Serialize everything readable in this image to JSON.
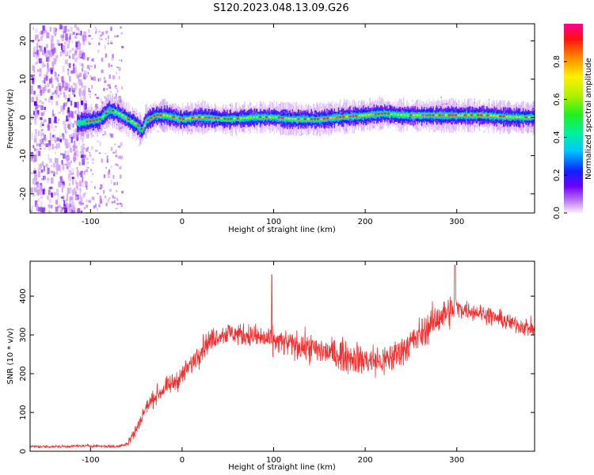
{
  "title": "S120.2023.048.13.09.G26",
  "chart_data": [
    {
      "type": "heatmap",
      "xlabel": "Height of straight line (km)",
      "ylabel": "Frequency (Hz)",
      "xlim": [
        -166,
        385
      ],
      "ylim": [
        -25,
        24.5
      ],
      "xticks": [
        -100,
        0,
        100,
        200,
        300
      ],
      "yticks": [
        -20,
        -10,
        0,
        10,
        20
      ],
      "colorbar": {
        "label": "Normalized spectral amplitude",
        "range": [
          0,
          1
        ],
        "ticks": [
          0.0,
          0.2,
          0.4,
          0.6,
          0.8
        ]
      },
      "ridge_center": {
        "x": [
          -115,
          -100,
          -90,
          -80,
          -70,
          -60,
          -50,
          -44,
          -40,
          -30,
          -20,
          -10,
          0,
          20,
          50,
          80,
          100,
          120,
          150,
          170,
          200,
          220,
          240,
          260,
          280,
          300,
          330,
          360,
          385
        ],
        "y": [
          -1.5,
          -1.0,
          -0.5,
          2.0,
          1.0,
          -0.5,
          -2.0,
          -3.5,
          -1.0,
          0.5,
          0.5,
          0.0,
          -0.5,
          0.0,
          -0.5,
          0.0,
          0.0,
          -0.5,
          -0.5,
          0.0,
          0.5,
          1.0,
          0.5,
          0.5,
          0.5,
          0.5,
          0.5,
          0.0,
          0.0
        ]
      }
    },
    {
      "type": "line",
      "xlabel": "Height of straight line (km)",
      "ylabel": "SNR (10 * v/v)",
      "xlim": [
        -166,
        385
      ],
      "ylim": [
        0,
        490
      ],
      "xticks": [
        -100,
        0,
        100,
        200,
        300
      ],
      "yticks": [
        0,
        100,
        200,
        300,
        400
      ],
      "series_color": "#f03030",
      "envelope": {
        "x": [
          -166,
          -140,
          -100,
          -70,
          -60,
          -50,
          -40,
          -30,
          -20,
          -10,
          0,
          10,
          20,
          30,
          40,
          50,
          70,
          100,
          130,
          160,
          200,
          220,
          240,
          260,
          280,
          300,
          330,
          360,
          385
        ],
        "y": [
          12,
          12,
          14,
          12,
          20,
          55,
          110,
          140,
          160,
          175,
          195,
          225,
          260,
          285,
          300,
          305,
          300,
          285,
          270,
          255,
          235,
          230,
          260,
          300,
          345,
          370,
          355,
          330,
          315
        ]
      }
    }
  ]
}
